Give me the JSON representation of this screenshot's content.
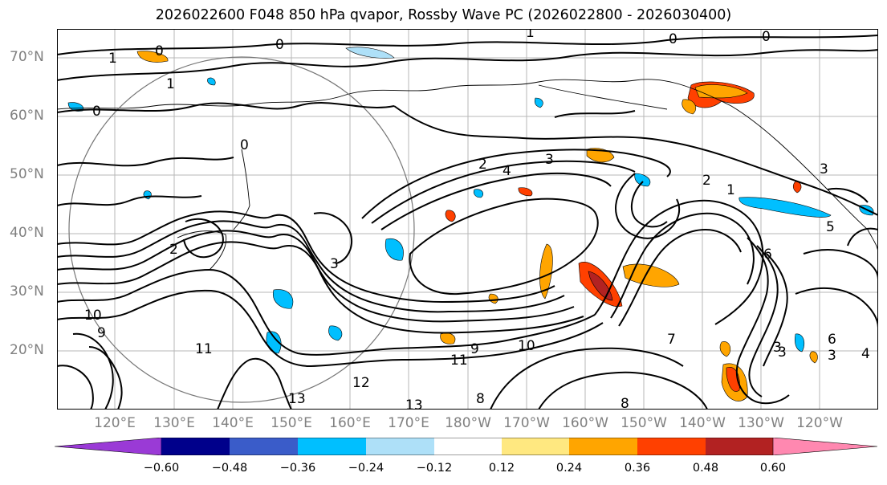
{
  "title": "2026022600 F048 850 hPa qvapor, Rossby Wave PC (2026022800 - 2026030400)",
  "map": {
    "lat_labels": [
      "70°N",
      "60°N",
      "50°N",
      "40°N",
      "30°N",
      "20°N"
    ],
    "lon_labels": [
      "120°E",
      "130°E",
      "140°E",
      "150°E",
      "160°E",
      "170°E",
      "180°W",
      "170°W",
      "160°W",
      "150°W",
      "140°W",
      "130°W",
      "120°W"
    ],
    "lat_range": [
      10,
      75
    ],
    "lon_range": [
      110,
      250
    ],
    "contour_label_values": [
      "0",
      "0",
      "0",
      "0",
      "0",
      "1",
      "1",
      "2",
      "2",
      "3",
      "3",
      "3",
      "4",
      "4",
      "5",
      "6",
      "8",
      "8",
      "9",
      "9",
      "10",
      "10",
      "11",
      "11",
      "12",
      "13",
      "13",
      "0",
      "1",
      "2",
      "3",
      "3",
      "3",
      "7",
      "6",
      "1"
    ]
  },
  "colorbar": {
    "ticks": [
      "−0.60",
      "−0.48",
      "−0.36",
      "−0.24",
      "−0.12",
      "0.12",
      "0.24",
      "0.36",
      "0.48",
      "0.60"
    ],
    "colors": [
      "#9a3ad6",
      "#00008b",
      "#3a5cc9",
      "#00bfff",
      "#aee0f8",
      "#ffffff",
      "#ffe880",
      "#ffa500",
      "#ff4000",
      "#b22222",
      "#ff88b0"
    ]
  }
}
